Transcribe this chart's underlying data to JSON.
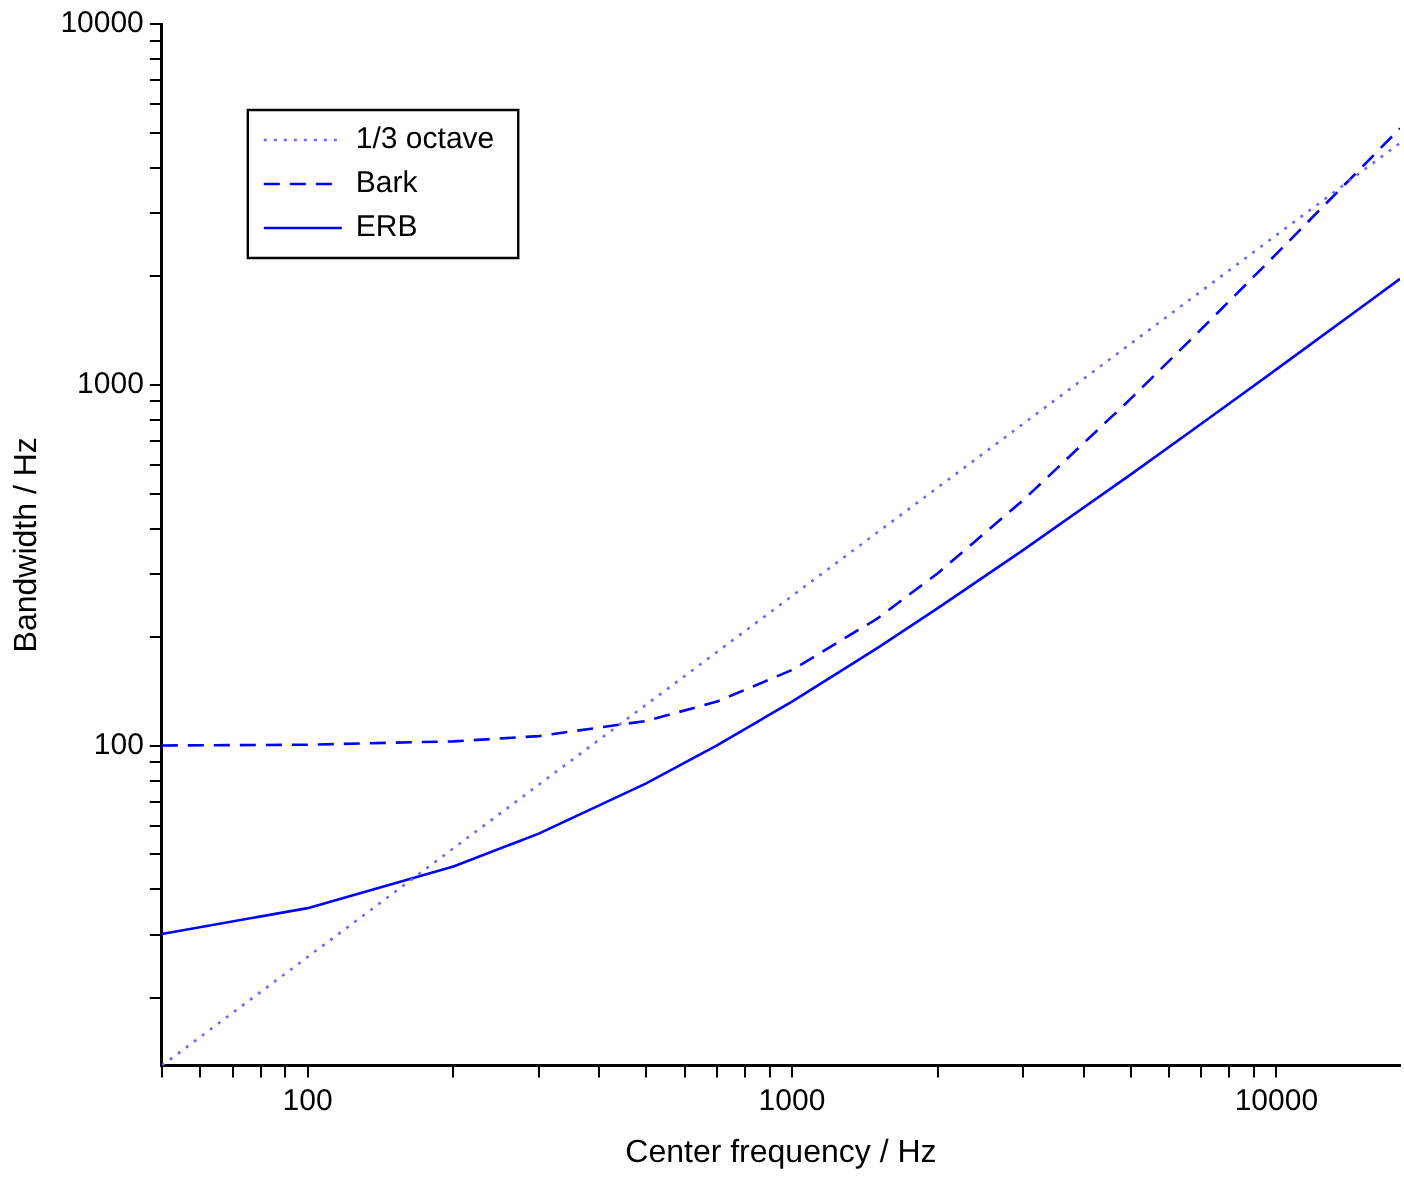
{
  "chart_data": {
    "type": "line",
    "xlabel": "Center frequency / Hz",
    "ylabel": "Bandwidth / Hz",
    "log": "xy",
    "grid": false,
    "legend": "top left",
    "xlim": [
      50,
      18000
    ],
    "ylim": [
      13,
      10000
    ],
    "xticks": [
      {
        "value": 50,
        "label": null
      },
      {
        "value": 60,
        "label": null
      },
      {
        "value": 70,
        "label": null
      },
      {
        "value": 80,
        "label": null
      },
      {
        "value": 90,
        "label": null
      },
      100,
      {
        "value": 200,
        "label": null
      },
      {
        "value": 300,
        "label": null
      },
      {
        "value": 400,
        "label": null
      },
      {
        "value": 500,
        "label": null
      },
      {
        "value": 600,
        "label": null
      },
      {
        "value": 700,
        "label": null
      },
      {
        "value": 800,
        "label": null
      },
      {
        "value": 900,
        "label": null
      },
      1000,
      {
        "value": 2000,
        "label": null
      },
      {
        "value": 3000,
        "label": null
      },
      {
        "value": 4000,
        "label": null
      },
      {
        "value": 5000,
        "label": null
      },
      {
        "value": 6000,
        "label": null
      },
      {
        "value": 7000,
        "label": null
      },
      {
        "value": 8000,
        "label": null
      },
      {
        "value": 9000,
        "label": null
      },
      10000
    ],
    "yticks": [
      {
        "value": 20,
        "label": null
      },
      {
        "value": 30,
        "label": null
      },
      {
        "value": 40,
        "label": null
      },
      {
        "value": 50,
        "label": null
      },
      {
        "value": 60,
        "label": null
      },
      {
        "value": 70,
        "label": null
      },
      {
        "value": 80,
        "label": null
      },
      {
        "value": 90,
        "label": null
      },
      100,
      {
        "value": 200,
        "label": null
      },
      {
        "value": 300,
        "label": null
      },
      {
        "value": 400,
        "label": null
      },
      {
        "value": 500,
        "label": null
      },
      {
        "value": 600,
        "label": null
      },
      {
        "value": 700,
        "label": null
      },
      {
        "value": 800,
        "label": null
      },
      {
        "value": 900,
        "label": null
      },
      1000,
      {
        "value": 2000,
        "label": null
      },
      {
        "value": 3000,
        "label": null
      },
      {
        "value": 4000,
        "label": null
      },
      {
        "value": 5000,
        "label": null
      },
      {
        "value": 6000,
        "label": null
      },
      {
        "value": 7000,
        "label": null
      },
      {
        "value": 8000,
        "label": null
      },
      {
        "value": 9000,
        "label": null
      },
      10000
    ],
    "marker": "none",
    "series": [
      {
        "name": "1/3 octave",
        "color": "#6a6aff",
        "line_style": "dotted",
        "x": [
          50,
          100,
          200,
          500,
          1000,
          2000,
          5000,
          10000,
          18000
        ],
        "values": [
          13,
          26,
          52,
          130,
          260,
          520,
          1300,
          2600,
          4680
        ]
      },
      {
        "name": "Bark",
        "color": "#0000ff",
        "line_style": "dashed",
        "x": [
          50,
          100,
          200,
          300,
          500,
          700,
          1000,
          1500,
          2000,
          3000,
          5000,
          7000,
          10000,
          15000,
          18000
        ],
        "values": [
          100.2,
          100.7,
          102.9,
          106.4,
          117.2,
          132.6,
          162.2,
          225.2,
          300.8,
          479.2,
          914.5,
          1427,
          2306,
          4005,
          5140
        ]
      },
      {
        "name": "ERB",
        "color": "#0000ff",
        "line_style": "solid",
        "x": [
          50,
          100,
          200,
          300,
          500,
          700,
          1000,
          1500,
          2000,
          3000,
          5000,
          7000,
          10000,
          15000,
          18000
        ],
        "values": [
          30.1,
          35.5,
          46.3,
          57.1,
          78.7,
          100.3,
          132.6,
          186.6,
          240.6,
          348.5,
          564.4,
          780.3,
          1104,
          1644,
          1967
        ]
      }
    ]
  }
}
